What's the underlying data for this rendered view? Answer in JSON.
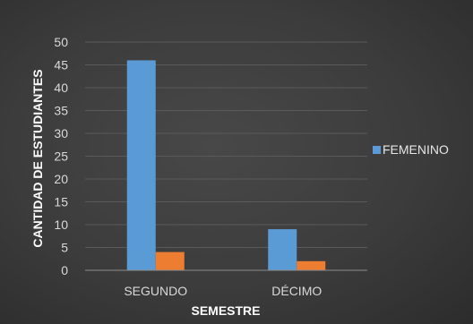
{
  "chart_data": {
    "type": "bar",
    "title": "",
    "xlabel": "SEMESTRE",
    "ylabel": "CANTIDAD  DE ESTUDIANTES",
    "categories": [
      "SEGUNDO",
      "DÉCIMO"
    ],
    "series": [
      {
        "name": "FEMENINO",
        "values": [
          46,
          9
        ],
        "color": "#5b9bd5"
      },
      {
        "values": [
          4,
          2
        ],
        "color": "#ed7d31"
      }
    ],
    "ylim": [
      0,
      50
    ],
    "yticks": [
      0,
      5,
      10,
      15,
      20,
      25,
      30,
      35,
      40,
      45,
      50
    ],
    "grid": true,
    "legend_position": "right"
  }
}
